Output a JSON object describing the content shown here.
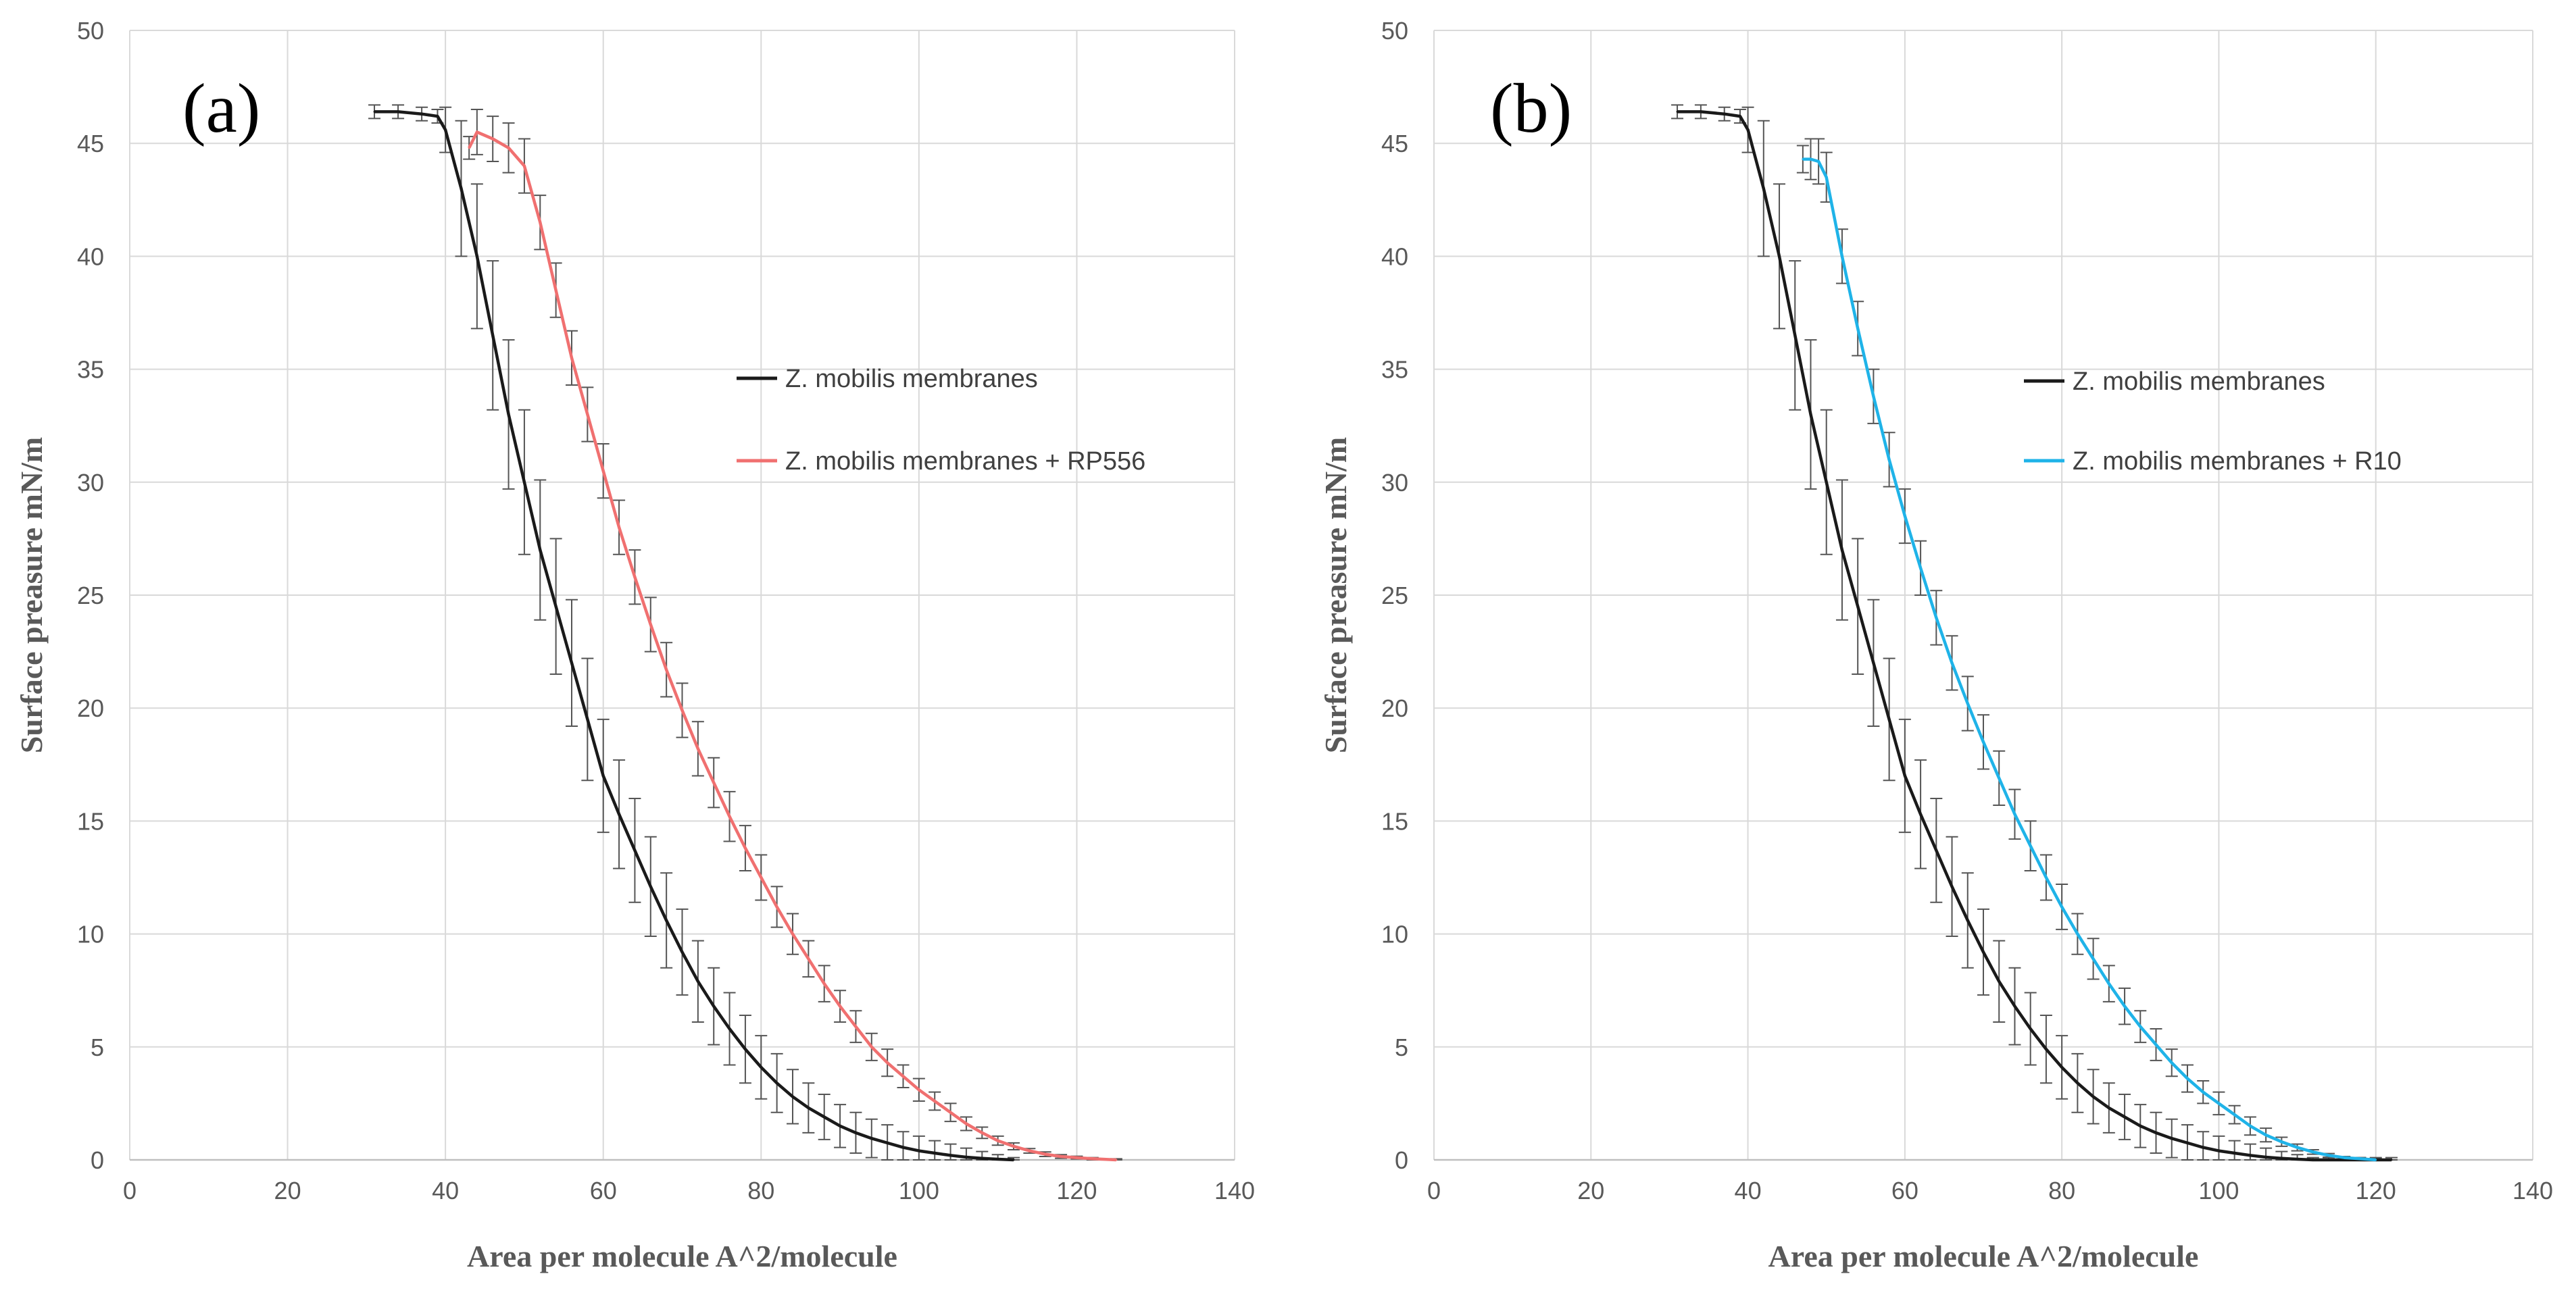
{
  "chart_data": [
    {
      "type": "line",
      "panel_label": "(a)",
      "xlabel": "Area per molecule A^2/molecule",
      "ylabel": "Surface preasure mN/m",
      "xlim": [
        0,
        140
      ],
      "ylim": [
        0,
        50
      ],
      "x_ticks": [
        "0",
        "20",
        "40",
        "60",
        "80",
        "100",
        "120",
        "140"
      ],
      "y_ticks": [
        "0",
        "5",
        "10",
        "15",
        "20",
        "25",
        "30",
        "35",
        "40",
        "45",
        "50"
      ],
      "grid": true,
      "legend_position": "middle-right",
      "series": [
        {
          "name": "Z. mobilis membranes",
          "color": "#1a1a1a",
          "error_bars": true,
          "x": [
            31,
            34,
            37,
            39,
            40,
            42,
            44,
            46,
            48,
            50,
            52,
            54,
            56,
            58,
            60,
            62,
            64,
            66,
            68,
            70,
            72,
            74,
            76,
            78,
            80,
            82,
            84,
            86,
            88,
            90,
            92,
            94,
            96,
            98,
            100,
            102,
            104,
            106,
            108,
            110,
            112
          ],
          "y": [
            46.4,
            46.4,
            46.3,
            46.2,
            45.6,
            43.0,
            40.0,
            36.5,
            33.0,
            30.0,
            27.0,
            24.5,
            22.0,
            19.5,
            17.0,
            15.3,
            13.7,
            12.1,
            10.6,
            9.2,
            7.9,
            6.8,
            5.8,
            4.9,
            4.1,
            3.4,
            2.8,
            2.3,
            1.9,
            1.5,
            1.2,
            0.95,
            0.75,
            0.55,
            0.4,
            0.3,
            0.2,
            0.12,
            0.07,
            0.03,
            0.0
          ],
          "error": [
            0.3,
            0.3,
            0.3,
            0.3,
            1.0,
            3.0,
            3.2,
            3.3,
            3.3,
            3.2,
            3.1,
            3.0,
            2.8,
            2.7,
            2.5,
            2.4,
            2.3,
            2.2,
            2.1,
            1.9,
            1.8,
            1.7,
            1.6,
            1.5,
            1.4,
            1.3,
            1.2,
            1.1,
            1.0,
            0.95,
            0.9,
            0.85,
            0.8,
            0.7,
            0.65,
            0.55,
            0.5,
            0.4,
            0.3,
            0.2,
            0.1
          ]
        },
        {
          "name": "Z. mobilis membranes + RP556",
          "color": "#f07070",
          "error_bars": true,
          "x": [
            43,
            44,
            46,
            48,
            50,
            52,
            54,
            56,
            58,
            60,
            62,
            64,
            66,
            68,
            70,
            72,
            74,
            76,
            78,
            80,
            82,
            84,
            86,
            88,
            90,
            92,
            94,
            96,
            98,
            100,
            102,
            104,
            106,
            108,
            110,
            112,
            114,
            116,
            118,
            120,
            122,
            125
          ],
          "y": [
            44.8,
            45.5,
            45.2,
            44.8,
            44.0,
            41.5,
            38.5,
            35.5,
            33.0,
            30.5,
            28.0,
            25.8,
            23.7,
            21.7,
            19.9,
            18.2,
            16.7,
            15.2,
            13.8,
            12.5,
            11.2,
            10.0,
            8.9,
            7.8,
            6.8,
            5.9,
            5.0,
            4.3,
            3.7,
            3.1,
            2.6,
            2.1,
            1.6,
            1.2,
            0.85,
            0.6,
            0.4,
            0.25,
            0.15,
            0.1,
            0.05,
            0.0
          ],
          "error": [
            0.5,
            1.0,
            1.0,
            1.1,
            1.2,
            1.2,
            1.2,
            1.2,
            1.2,
            1.2,
            1.2,
            1.2,
            1.2,
            1.2,
            1.2,
            1.2,
            1.1,
            1.1,
            1.0,
            1.0,
            0.9,
            0.9,
            0.8,
            0.8,
            0.7,
            0.7,
            0.6,
            0.6,
            0.5,
            0.5,
            0.4,
            0.4,
            0.3,
            0.25,
            0.2,
            0.15,
            0.1,
            0.1,
            0.08,
            0.06,
            0.05,
            0.05
          ]
        }
      ]
    },
    {
      "type": "line",
      "panel_label": "(b)",
      "xlabel": "Area per molecule A^2/molecule",
      "ylabel": "Surface preasure mN/m",
      "xlim": [
        0,
        140
      ],
      "ylim": [
        0,
        50
      ],
      "x_ticks": [
        "0",
        "20",
        "40",
        "60",
        "80",
        "100",
        "120",
        "140"
      ],
      "y_ticks": [
        "0",
        "5",
        "10",
        "15",
        "20",
        "25",
        "30",
        "35",
        "40",
        "45",
        "50"
      ],
      "grid": true,
      "legend_position": "middle-right",
      "series": [
        {
          "name": "Z. mobilis membranes",
          "color": "#1a1a1a",
          "error_bars": true,
          "x": [
            31,
            34,
            37,
            39,
            40,
            42,
            44,
            46,
            48,
            50,
            52,
            54,
            56,
            58,
            60,
            62,
            64,
            66,
            68,
            70,
            72,
            74,
            76,
            78,
            80,
            82,
            84,
            86,
            88,
            90,
            92,
            94,
            96,
            98,
            100,
            102,
            104,
            106,
            108,
            110,
            112,
            114,
            116,
            118,
            120,
            122
          ],
          "y": [
            46.4,
            46.4,
            46.3,
            46.2,
            45.6,
            43.0,
            40.0,
            36.5,
            33.0,
            30.0,
            27.0,
            24.5,
            22.0,
            19.5,
            17.0,
            15.3,
            13.7,
            12.1,
            10.6,
            9.2,
            7.9,
            6.8,
            5.8,
            4.9,
            4.1,
            3.4,
            2.8,
            2.3,
            1.9,
            1.5,
            1.2,
            0.95,
            0.75,
            0.55,
            0.4,
            0.3,
            0.2,
            0.12,
            0.07,
            0.03,
            0.0,
            0.0,
            0.0,
            0.0,
            0.0,
            0.0
          ],
          "error": [
            0.3,
            0.3,
            0.3,
            0.3,
            1.0,
            3.0,
            3.2,
            3.3,
            3.3,
            3.2,
            3.1,
            3.0,
            2.8,
            2.7,
            2.5,
            2.4,
            2.3,
            2.2,
            2.1,
            1.9,
            1.8,
            1.7,
            1.6,
            1.5,
            1.4,
            1.3,
            1.2,
            1.1,
            1.0,
            0.95,
            0.9,
            0.85,
            0.8,
            0.7,
            0.65,
            0.55,
            0.5,
            0.4,
            0.3,
            0.2,
            0.1,
            0.1,
            0.1,
            0.1,
            0.1,
            0.1
          ]
        },
        {
          "name": "Z. mobilis membranes + R10",
          "color": "#1fb3e8",
          "error_bars": true,
          "x": [
            47,
            48,
            49,
            50,
            52,
            54,
            56,
            58,
            60,
            62,
            64,
            66,
            68,
            70,
            72,
            74,
            76,
            78,
            80,
            82,
            84,
            86,
            88,
            90,
            92,
            94,
            96,
            98,
            100,
            102,
            104,
            106,
            108,
            110,
            112,
            114,
            116,
            118,
            120
          ],
          "y": [
            44.3,
            44.3,
            44.2,
            43.5,
            40.0,
            36.8,
            33.8,
            31.0,
            28.5,
            26.2,
            24.0,
            22.0,
            20.2,
            18.5,
            16.9,
            15.3,
            13.9,
            12.5,
            11.2,
            10.0,
            8.9,
            7.8,
            6.8,
            5.9,
            5.1,
            4.3,
            3.6,
            3.0,
            2.5,
            2.0,
            1.5,
            1.1,
            0.8,
            0.55,
            0.35,
            0.2,
            0.1,
            0.05,
            0.0
          ],
          "error": [
            0.6,
            0.9,
            1.0,
            1.1,
            1.2,
            1.2,
            1.2,
            1.2,
            1.2,
            1.2,
            1.2,
            1.2,
            1.2,
            1.2,
            1.2,
            1.1,
            1.1,
            1.0,
            1.0,
            0.9,
            0.9,
            0.8,
            0.8,
            0.7,
            0.7,
            0.6,
            0.6,
            0.5,
            0.5,
            0.4,
            0.4,
            0.3,
            0.2,
            0.15,
            0.1,
            0.08,
            0.05,
            0.05,
            0.05
          ]
        }
      ]
    }
  ]
}
